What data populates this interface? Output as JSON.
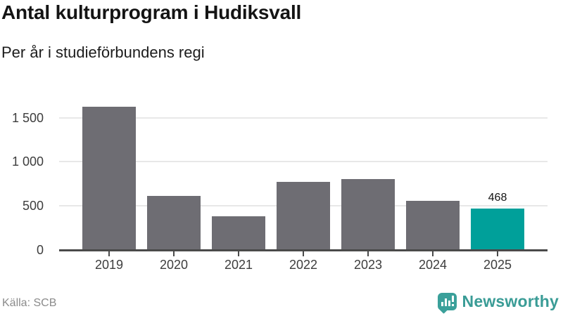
{
  "header": {
    "title": "Antal kulturprogram i Hudiksvall",
    "subtitle": "Per år i studieförbundens regi"
  },
  "chart_data": {
    "type": "bar",
    "title": "Antal kulturprogram i Hudiksvall",
    "subtitle": "Per år i studieförbundens regi",
    "categories": [
      "2019",
      "2020",
      "2021",
      "2022",
      "2023",
      "2024",
      "2025"
    ],
    "values": [
      1625,
      615,
      385,
      770,
      800,
      560,
      468
    ],
    "value_labels": [
      "",
      "",
      "",
      "",
      "",
      "",
      "468"
    ],
    "xlabel": "",
    "ylabel": "",
    "ylim": [
      0,
      1700
    ],
    "yticks": [
      0,
      500,
      1000,
      1500
    ],
    "ytick_labels": [
      "0",
      "500",
      "1 000",
      "1 500"
    ],
    "grid": true,
    "legend": "none",
    "bar_color": "#6e6d73",
    "highlight_color": "#00a09a",
    "highlight_index": 6
  },
  "footer": {
    "source": "Källa: SCB",
    "brand": "Newsworthy"
  },
  "colors": {
    "background": "#ffffff",
    "gridline": "#e8e8e8",
    "axis": "#4a4a4a",
    "text": "#141414",
    "muted_text": "#8b8b8b",
    "brand_teal": "#3a9c96"
  }
}
